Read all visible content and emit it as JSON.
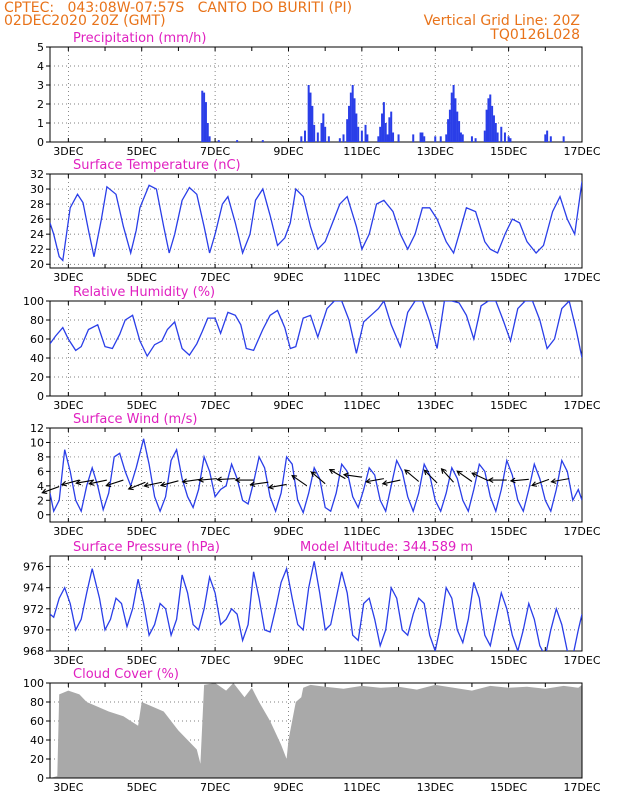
{
  "header": {
    "line1": "CPTEC:   043:08W-07:57S   CANTO DO BURITI (PI)",
    "line2": "02DEC2020 20Z (GMT)",
    "grid_note": "Vertical Grid Line: 20Z",
    "run_id": "TQ0126L028"
  },
  "colors": {
    "header": "#e8731a",
    "title": "#e020c0",
    "series": "#2a3ee8",
    "cloud": "#a9a9a9",
    "wind_vector": "#000000"
  },
  "x_ticks": [
    "3DEC",
    "5DEC",
    "7DEC",
    "9DEC",
    "11DEC",
    "13DEC",
    "15DEC",
    "17DEC"
  ],
  "chart_data": [
    {
      "id": "precip",
      "type": "bar",
      "title": "Precipitation (mm/h)",
      "ylim": [
        0,
        5
      ],
      "yticks": [
        "0",
        "1",
        "2",
        "3",
        "4",
        "5"
      ],
      "x_day_range": [
        2.5,
        17.0
      ],
      "grid": true,
      "points": [
        [
          6.65,
          2.7
        ],
        [
          6.7,
          2.6
        ],
        [
          6.75,
          2.1
        ],
        [
          6.8,
          1.0
        ],
        [
          6.85,
          0.3
        ],
        [
          7.1,
          0.1
        ],
        [
          7.6,
          0.1
        ],
        [
          8.3,
          0.1
        ],
        [
          9.35,
          0.3
        ],
        [
          9.45,
          0.6
        ],
        [
          9.55,
          3.0
        ],
        [
          9.6,
          2.6
        ],
        [
          9.65,
          1.9
        ],
        [
          9.7,
          0.9
        ],
        [
          9.8,
          0.5
        ],
        [
          9.9,
          1.0
        ],
        [
          9.95,
          1.5
        ],
        [
          10.0,
          0.8
        ],
        [
          10.1,
          0.3
        ],
        [
          10.4,
          0.2
        ],
        [
          10.5,
          0.4
        ],
        [
          10.6,
          1.2
        ],
        [
          10.65,
          1.9
        ],
        [
          10.7,
          2.6
        ],
        [
          10.75,
          3.0
        ],
        [
          10.8,
          2.3
        ],
        [
          10.85,
          1.5
        ],
        [
          10.9,
          0.8
        ],
        [
          11.0,
          0.6
        ],
        [
          11.1,
          0.9
        ],
        [
          11.15,
          0.4
        ],
        [
          11.45,
          0.3
        ],
        [
          11.5,
          0.8
        ],
        [
          11.55,
          1.5
        ],
        [
          11.6,
          2.1
        ],
        [
          11.65,
          1.0
        ],
        [
          11.7,
          0.4
        ],
        [
          11.75,
          1.3
        ],
        [
          11.8,
          1.6
        ],
        [
          11.85,
          0.5
        ],
        [
          12.0,
          0.4
        ],
        [
          12.4,
          0.4
        ],
        [
          12.6,
          0.5
        ],
        [
          12.65,
          0.5
        ],
        [
          12.7,
          0.3
        ],
        [
          13.0,
          0.3
        ],
        [
          13.15,
          0.3
        ],
        [
          13.3,
          0.4
        ],
        [
          13.35,
          1.2
        ],
        [
          13.4,
          1.7
        ],
        [
          13.45,
          2.6
        ],
        [
          13.5,
          3.0
        ],
        [
          13.55,
          2.3
        ],
        [
          13.6,
          1.6
        ],
        [
          13.65,
          1.1
        ],
        [
          13.7,
          0.5
        ],
        [
          13.75,
          0.4
        ],
        [
          14.0,
          0.3
        ],
        [
          14.1,
          0.2
        ],
        [
          14.35,
          0.6
        ],
        [
          14.4,
          1.7
        ],
        [
          14.45,
          2.3
        ],
        [
          14.5,
          2.5
        ],
        [
          14.55,
          1.9
        ],
        [
          14.6,
          1.4
        ],
        [
          14.65,
          1.0
        ],
        [
          14.7,
          0.5
        ],
        [
          14.8,
          0.8
        ],
        [
          14.9,
          0.5
        ],
        [
          15.0,
          0.3
        ],
        [
          15.05,
          0.2
        ],
        [
          16.0,
          0.4
        ],
        [
          16.05,
          0.6
        ],
        [
          16.15,
          0.3
        ],
        [
          16.5,
          0.3
        ]
      ]
    },
    {
      "id": "temp",
      "type": "line",
      "title": "Surface Temperature (nC)",
      "ylim": [
        19.5,
        32
      ],
      "yticks": [
        "20",
        "22",
        "24",
        "26",
        "28",
        "30",
        "32"
      ],
      "x_day_range": [
        2.5,
        17.0
      ],
      "grid": true,
      "x": [
        2.5,
        2.6,
        2.75,
        2.85,
        2.95,
        3.05,
        3.25,
        3.4,
        3.55,
        3.7,
        3.9,
        4.05,
        4.3,
        4.5,
        4.7,
        4.85,
        4.95,
        5.2,
        5.4,
        5.6,
        5.75,
        5.9,
        6.1,
        6.3,
        6.5,
        6.7,
        6.85,
        7.0,
        7.2,
        7.35,
        7.55,
        7.75,
        7.95,
        8.1,
        8.3,
        8.5,
        8.7,
        8.9,
        9.05,
        9.2,
        9.4,
        9.6,
        9.8,
        10.0,
        10.2,
        10.4,
        10.6,
        10.85,
        11.0,
        11.2,
        11.4,
        11.6,
        11.85,
        12.05,
        12.25,
        12.45,
        12.65,
        12.85,
        13.05,
        13.3,
        13.5,
        13.65,
        13.85,
        14.1,
        14.35,
        14.5,
        14.7,
        14.9,
        15.1,
        15.3,
        15.5,
        15.75,
        15.95,
        16.2,
        16.4,
        16.6,
        16.8,
        17.0
      ],
      "y": [
        25.5,
        24.0,
        21.0,
        20.5,
        24.0,
        27.5,
        29.3,
        28.2,
        24.5,
        21.0,
        26.0,
        30.3,
        29.3,
        25.0,
        21.5,
        24.5,
        27.5,
        30.5,
        30.0,
        25.0,
        21.5,
        24.0,
        28.5,
        30.2,
        29.3,
        25.0,
        21.5,
        24.0,
        28.0,
        29.0,
        25.5,
        21.5,
        24.0,
        28.5,
        30.0,
        26.5,
        22.5,
        23.5,
        25.5,
        30.0,
        29.0,
        25.0,
        22.0,
        23.0,
        25.5,
        28.0,
        29.0,
        25.0,
        22.0,
        24.0,
        28.0,
        28.5,
        27.0,
        24.0,
        22.0,
        24.0,
        27.5,
        27.5,
        26.0,
        23.0,
        21.5,
        24.0,
        27.5,
        27.0,
        23.0,
        22.0,
        21.5,
        24.0,
        26.0,
        25.5,
        23.0,
        21.5,
        22.5,
        27.0,
        29.0,
        26.0,
        24.0,
        31.0
      ]
    },
    {
      "id": "rh",
      "type": "line",
      "title": "Relative Humidity (%)",
      "ylim": [
        0,
        100
      ],
      "yticks": [
        "0",
        "20",
        "40",
        "60",
        "80",
        "100"
      ],
      "x_day_range": [
        2.5,
        17.0
      ],
      "grid": true,
      "x": [
        2.5,
        2.65,
        2.85,
        3.0,
        3.2,
        3.35,
        3.55,
        3.8,
        4.0,
        4.2,
        4.4,
        4.55,
        4.75,
        4.95,
        5.15,
        5.35,
        5.55,
        5.7,
        5.9,
        6.1,
        6.3,
        6.5,
        6.65,
        6.8,
        7.0,
        7.15,
        7.35,
        7.55,
        7.7,
        7.85,
        8.05,
        8.3,
        8.5,
        8.7,
        8.9,
        9.05,
        9.2,
        9.4,
        9.6,
        9.8,
        10.05,
        10.25,
        10.45,
        10.65,
        10.85,
        11.05,
        11.25,
        11.45,
        11.6,
        11.8,
        12.05,
        12.25,
        12.45,
        12.65,
        12.85,
        13.05,
        13.25,
        13.45,
        13.65,
        13.85,
        14.05,
        14.25,
        14.45,
        14.65,
        14.85,
        15.05,
        15.25,
        15.45,
        15.65,
        15.85,
        16.05,
        16.25,
        16.45,
        16.65,
        16.85,
        17.0
      ],
      "y": [
        55,
        63,
        72,
        60,
        48,
        52,
        70,
        75,
        52,
        50,
        65,
        80,
        85,
        58,
        42,
        54,
        58,
        70,
        78,
        50,
        43,
        55,
        68,
        82,
        82,
        66,
        88,
        85,
        75,
        50,
        48,
        70,
        85,
        90,
        72,
        50,
        52,
        82,
        85,
        62,
        92,
        100,
        100,
        80,
        45,
        78,
        85,
        92,
        100,
        75,
        52,
        88,
        100,
        100,
        78,
        50,
        100,
        100,
        98,
        85,
        60,
        95,
        100,
        100,
        80,
        58,
        92,
        100,
        100,
        80,
        50,
        60,
        92,
        100,
        68,
        40
      ]
    },
    {
      "id": "wind",
      "type": "line",
      "title": "Surface Wind (m/s)",
      "ylim": [
        -1,
        12
      ],
      "yticks": [
        "0",
        "2",
        "4",
        "6",
        "8",
        "10",
        "12"
      ],
      "x_day_range": [
        2.5,
        17.0
      ],
      "grid": true,
      "x": [
        2.5,
        2.6,
        2.75,
        2.9,
        3.05,
        3.2,
        3.35,
        3.5,
        3.65,
        3.8,
        3.95,
        4.1,
        4.25,
        4.4,
        4.55,
        4.7,
        4.85,
        5.05,
        5.2,
        5.35,
        5.5,
        5.65,
        5.8,
        5.95,
        6.1,
        6.25,
        6.4,
        6.55,
        6.7,
        6.85,
        7.0,
        7.15,
        7.3,
        7.45,
        7.6,
        7.75,
        7.9,
        8.05,
        8.2,
        8.35,
        8.5,
        8.65,
        8.8,
        8.95,
        9.1,
        9.25,
        9.4,
        9.55,
        9.7,
        9.85,
        10.0,
        10.15,
        10.3,
        10.45,
        10.6,
        10.75,
        10.9,
        11.05,
        11.2,
        11.35,
        11.5,
        11.65,
        11.8,
        11.95,
        12.1,
        12.25,
        12.4,
        12.55,
        12.7,
        12.85,
        13.0,
        13.15,
        13.3,
        13.45,
        13.6,
        13.75,
        13.9,
        14.05,
        14.2,
        14.35,
        14.5,
        14.65,
        14.8,
        14.95,
        15.1,
        15.25,
        15.4,
        15.55,
        15.7,
        15.85,
        16.0,
        16.15,
        16.3,
        16.45,
        16.6,
        16.75,
        16.9,
        17.0
      ],
      "y": [
        3.0,
        0.5,
        2.0,
        9.0,
        6.0,
        2.0,
        0.5,
        4.0,
        6.5,
        4.0,
        0.7,
        3.0,
        8.0,
        8.5,
        6.0,
        4.0,
        6.5,
        10.5,
        7.0,
        2.5,
        0.5,
        2.5,
        7.5,
        9.0,
        5.0,
        2.5,
        1.0,
        3.5,
        8.0,
        6.0,
        2.5,
        3.5,
        4.0,
        7.0,
        5.0,
        2.0,
        1.5,
        4.5,
        8.0,
        6.5,
        2.5,
        0.5,
        3.0,
        8.0,
        7.0,
        2.0,
        0.3,
        3.0,
        6.5,
        5.0,
        1.0,
        0.5,
        3.0,
        7.0,
        6.0,
        2.5,
        1.0,
        3.5,
        6.5,
        5.5,
        2.0,
        0.5,
        4.0,
        7.5,
        6.0,
        2.5,
        0.5,
        3.0,
        7.0,
        5.5,
        2.0,
        0.5,
        3.0,
        6.5,
        5.0,
        2.0,
        0.5,
        3.5,
        7.0,
        6.0,
        2.5,
        0.5,
        3.5,
        7.5,
        5.5,
        2.0,
        0.5,
        3.5,
        7.0,
        5.0,
        2.0,
        0.5,
        3.5,
        7.5,
        6.0,
        2.0,
        3.5,
        2.0
      ],
      "vectors": [
        [
          2.75,
          3.9,
          -20
        ],
        [
          3.3,
          4.8,
          -15
        ],
        [
          3.7,
          4.8,
          -10
        ],
        [
          4.05,
          4.8,
          -12
        ],
        [
          4.5,
          4.8,
          -18
        ],
        [
          5.1,
          4.5,
          -22
        ],
        [
          5.55,
          4.5,
          -12
        ],
        [
          6.0,
          4.7,
          -15
        ],
        [
          6.6,
          4.9,
          -8
        ],
        [
          7.05,
          5.0,
          -5
        ],
        [
          7.55,
          5.0,
          -3
        ],
        [
          8.05,
          4.8,
          0
        ],
        [
          8.45,
          4.5,
          -8
        ],
        [
          8.95,
          4.2,
          -10
        ],
        [
          9.5,
          4.0,
          35
        ],
        [
          10.0,
          4.3,
          40
        ],
        [
          10.55,
          5.0,
          30
        ],
        [
          11.0,
          5.2,
          8
        ],
        [
          11.6,
          5.0,
          -10
        ],
        [
          12.05,
          4.8,
          -12
        ],
        [
          12.55,
          4.6,
          40
        ],
        [
          13.05,
          4.4,
          45
        ],
        [
          13.5,
          4.5,
          48
        ],
        [
          14.0,
          4.6,
          35
        ],
        [
          14.45,
          4.7,
          25
        ],
        [
          14.95,
          4.8,
          0
        ],
        [
          15.55,
          4.9,
          -5
        ],
        [
          16.1,
          4.9,
          -20
        ],
        [
          16.65,
          5.0,
          -10
        ]
      ]
    },
    {
      "id": "pressure",
      "type": "line",
      "title": "Surface Pressure (hPa)",
      "annotation": "Model Altitude: 344.589  m",
      "ylim": [
        968,
        977
      ],
      "yticks": [
        "968",
        "970",
        "972",
        "974",
        "976"
      ],
      "x_day_range": [
        2.5,
        17.0
      ],
      "grid": true,
      "x": [
        2.5,
        2.6,
        2.75,
        2.9,
        3.05,
        3.2,
        3.35,
        3.5,
        3.65,
        3.85,
        4.0,
        4.15,
        4.3,
        4.45,
        4.6,
        4.75,
        4.9,
        5.05,
        5.2,
        5.35,
        5.5,
        5.65,
        5.8,
        5.95,
        6.1,
        6.25,
        6.4,
        6.55,
        6.7,
        6.85,
        7.0,
        7.15,
        7.3,
        7.45,
        7.6,
        7.75,
        7.9,
        8.05,
        8.2,
        8.35,
        8.5,
        8.65,
        8.8,
        8.95,
        9.1,
        9.25,
        9.4,
        9.55,
        9.7,
        9.85,
        10.0,
        10.15,
        10.3,
        10.45,
        10.6,
        10.75,
        10.9,
        11.05,
        11.2,
        11.35,
        11.5,
        11.65,
        11.8,
        11.95,
        12.1,
        12.25,
        12.4,
        12.55,
        12.7,
        12.85,
        13.0,
        13.15,
        13.3,
        13.45,
        13.6,
        13.75,
        13.9,
        14.05,
        14.2,
        14.35,
        14.5,
        14.65,
        14.8,
        14.95,
        15.1,
        15.25,
        15.4,
        15.55,
        15.7,
        15.85,
        16.0,
        16.15,
        16.3,
        16.45,
        16.6,
        16.75,
        16.9,
        17.0
      ],
      "y": [
        971.5,
        971.2,
        973.0,
        974.0,
        972.5,
        970.0,
        971.0,
        973.5,
        975.8,
        973.0,
        970.0,
        971.0,
        973.0,
        972.5,
        970.3,
        972.0,
        974.8,
        972.5,
        969.5,
        970.5,
        972.5,
        972.0,
        969.5,
        971.0,
        975.2,
        973.5,
        970.5,
        970.0,
        972.0,
        975.0,
        973.5,
        970.5,
        971.0,
        972.0,
        971.5,
        969.0,
        970.5,
        975.5,
        973.0,
        970.0,
        969.8,
        972.0,
        974.5,
        975.8,
        973.0,
        970.5,
        970.0,
        974.0,
        976.5,
        973.5,
        970.0,
        970.5,
        973.0,
        975.5,
        973.5,
        969.5,
        969.0,
        972.5,
        973.0,
        971.0,
        968.5,
        970.0,
        974.0,
        973.0,
        970.0,
        969.5,
        971.5,
        973.0,
        972.5,
        969.5,
        968.0,
        970.5,
        974.0,
        973.0,
        970.0,
        968.8,
        971.0,
        974.5,
        973.0,
        969.5,
        968.5,
        971.0,
        973.5,
        972.0,
        969.5,
        968.0,
        970.0,
        972.5,
        971.0,
        968.5,
        967.5,
        970.0,
        972.0,
        970.5,
        968.0,
        967.5,
        970.0,
        971.5
      ]
    },
    {
      "id": "cloud",
      "type": "area",
      "title": "Cloud Cover (%)",
      "ylim": [
        0,
        100
      ],
      "yticks": [
        "0",
        "20",
        "40",
        "60",
        "80",
        "100"
      ],
      "x_day_range": [
        2.5,
        17.0
      ],
      "grid": true,
      "x": [
        2.5,
        2.7,
        2.75,
        3.0,
        3.3,
        3.5,
        3.8,
        4.1,
        4.5,
        4.9,
        5.0,
        5.3,
        5.6,
        5.9,
        6.0,
        6.25,
        6.5,
        6.6,
        6.7,
        7.0,
        7.3,
        7.5,
        7.8,
        8.0,
        8.2,
        8.5,
        8.8,
        8.95,
        9.0,
        9.2,
        9.35,
        9.4,
        9.6,
        10.0,
        10.5,
        11.0,
        11.5,
        12.0,
        12.5,
        13.0,
        13.5,
        14.0,
        14.5,
        15.0,
        15.5,
        16.0,
        16.5,
        16.9,
        17.0
      ],
      "y": [
        0,
        2,
        88,
        92,
        88,
        80,
        75,
        70,
        65,
        55,
        80,
        75,
        70,
        55,
        50,
        40,
        30,
        15,
        98,
        100,
        92,
        100,
        85,
        95,
        80,
        60,
        35,
        20,
        40,
        80,
        85,
        95,
        98,
        96,
        94,
        97,
        95,
        96,
        93,
        98,
        95,
        92,
        97,
        95,
        96,
        94,
        97,
        95,
        98
      ]
    }
  ]
}
